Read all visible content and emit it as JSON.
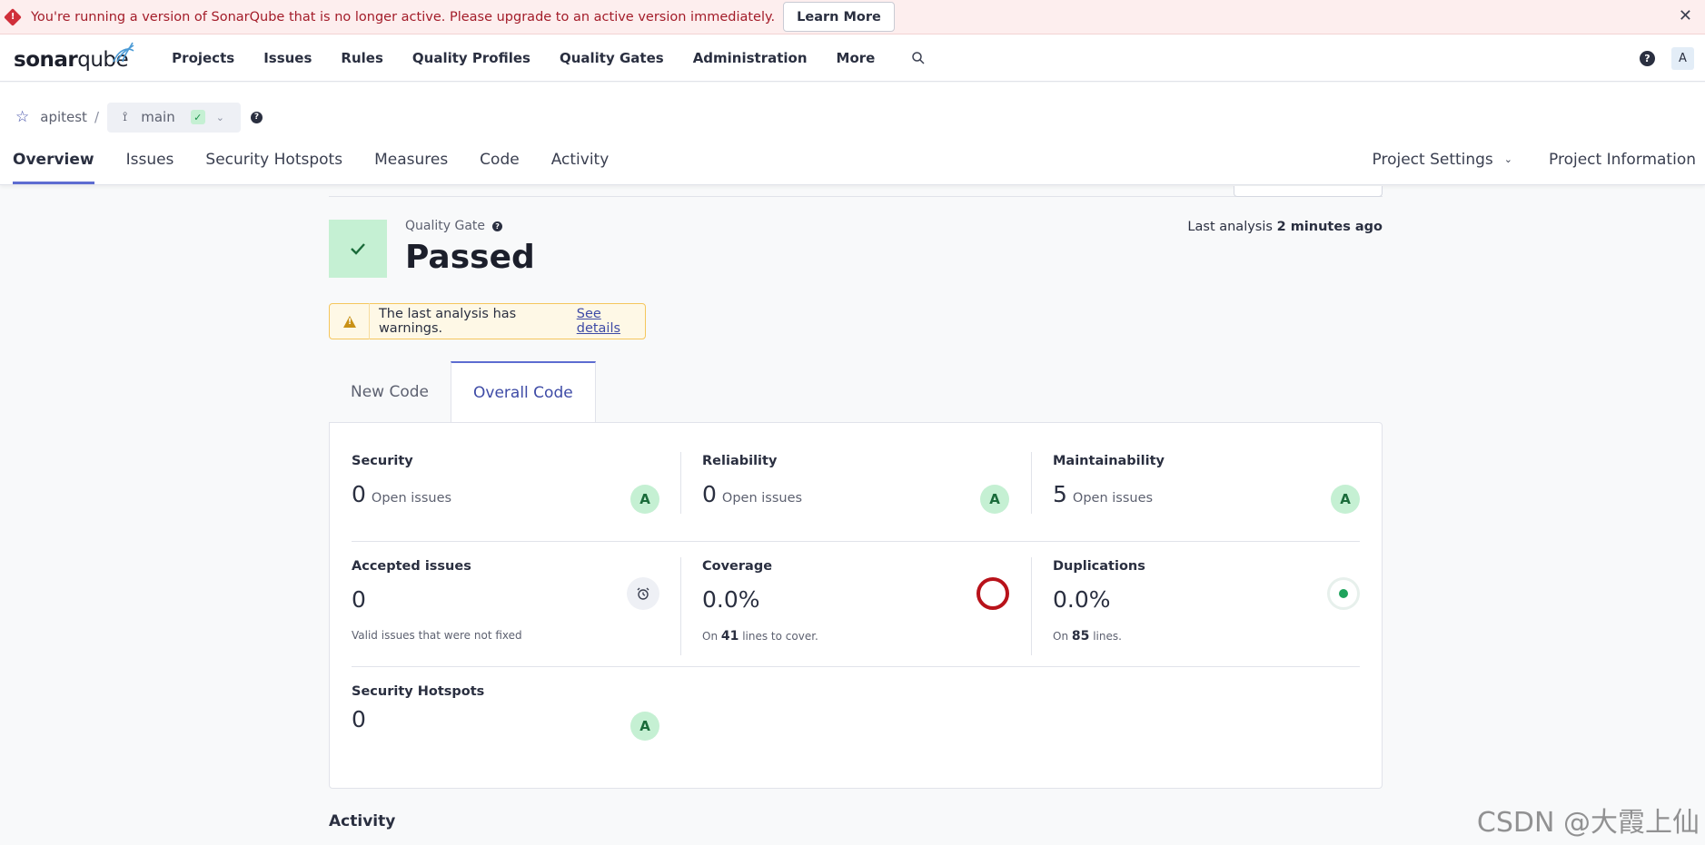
{
  "banner": {
    "message": "You're running a version of SonarQube that is no longer active. Please upgrade to an active version immediately.",
    "learn_more": "Learn More"
  },
  "nav": {
    "logo_bold": "sonar",
    "logo_rest": "qube",
    "links": [
      "Projects",
      "Issues",
      "Rules",
      "Quality Profiles",
      "Quality Gates",
      "Administration",
      "More"
    ],
    "avatar": "A"
  },
  "project": {
    "name": "apitest",
    "separator": "/",
    "branch": "main",
    "tabs": [
      "Overview",
      "Issues",
      "Security Hotspots",
      "Measures",
      "Code",
      "Activity"
    ],
    "settings": "Project Settings",
    "information": "Project Information"
  },
  "quality_gate": {
    "label": "Quality Gate",
    "status": "Passed",
    "last_analysis_prefix": "Last analysis",
    "last_analysis_time": "2 minutes ago"
  },
  "warning": {
    "text": "The last analysis has warnings.",
    "link": "See details"
  },
  "code_tabs": {
    "new_code": "New Code",
    "overall_code": "Overall Code"
  },
  "metrics": {
    "security": {
      "title": "Security",
      "value": "0",
      "sub": "Open issues",
      "grade": "A"
    },
    "reliability": {
      "title": "Reliability",
      "value": "0",
      "sub": "Open issues",
      "grade": "A"
    },
    "maintainability": {
      "title": "Maintainability",
      "value": "5",
      "sub": "Open issues",
      "grade": "A"
    },
    "accepted": {
      "title": "Accepted issues",
      "value": "0",
      "note": "Valid issues that were not fixed"
    },
    "coverage": {
      "title": "Coverage",
      "value": "0.0%",
      "note_prefix": "On",
      "note_num": "41",
      "note_suffix": "lines to cover."
    },
    "duplications": {
      "title": "Duplications",
      "value": "0.0%",
      "note_prefix": "On",
      "note_num": "85",
      "note_suffix": "lines."
    },
    "hotspots": {
      "title": "Security Hotspots",
      "value": "0",
      "grade": "A"
    }
  },
  "activity_heading": "Activity",
  "watermark": "CSDN @大霞上仙",
  "colors": {
    "accent": "#5d6cd1",
    "passed_bg": "#c5f0d3",
    "banner_bg": "#fdeeee",
    "coverage_ring": "#b8121a"
  }
}
